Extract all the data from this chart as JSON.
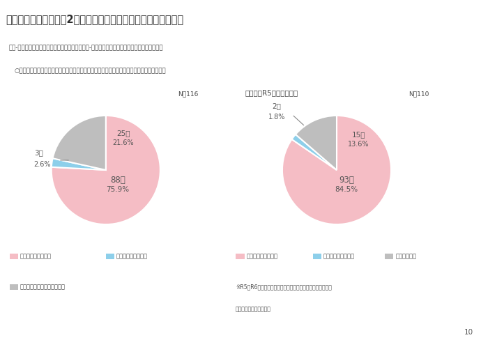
{
  "title": "３．調査結果詳細　（2）女性が働きやすい職場環境整備の状況",
  "subtitle1": "問２-４　取組をはじめる際の経営者の反応（問２-１で「取組をはじめている」と回答した方）",
  "subtitle2": "○　取組をはじめる際の経営者の反応については、「取組に対して好意的」が最も多かった。",
  "ref_title": "【参考】R5年度調査結果",
  "chart1": {
    "n_label": "N＝116",
    "values": [
      88,
      3,
      25
    ],
    "percentages": [
      "75.9%",
      "2.6%",
      "21.6%"
    ],
    "counts": [
      "88人",
      "3人",
      "25人"
    ],
    "colors": [
      "#F5BDC5",
      "#8DCFEA",
      "#BEBEBE"
    ],
    "startangle": 90
  },
  "chart2": {
    "n_label": "N＝110",
    "values": [
      93,
      2,
      15
    ],
    "percentages": [
      "84.5%",
      "1.8%",
      "13.6%"
    ],
    "counts": [
      "93人",
      "2人",
      "15人"
    ],
    "colors": [
      "#F5BDC5",
      "#8DCFEA",
      "#BEBEBE"
    ],
    "startangle": 90
  },
  "legend1_items": [
    "取組に対して好意的",
    "取組に対して消極的",
    "特に反応なし又はわからない"
  ],
  "legend1_colors": [
    "#F5BDC5",
    "#8DCFEA",
    "#BEBEBE"
  ],
  "legend2_items": [
    "取組に対して好意的",
    "取組に対して消極的",
    "特に反応なし"
  ],
  "legend2_colors": [
    "#F5BDC5",
    "#8DCFEA",
    "#BEBEBE"
  ],
  "note1": "※R5とR6において、回答対象及び一部回答項目が異なるため",
  "note2": "　単純比較が難しいこと",
  "bg_color": "#FFFFFF",
  "title_bg_color": "#F0F0F0",
  "title_bar_color": "#E8C4C4",
  "text_color": "#444444",
  "page_number": "10"
}
